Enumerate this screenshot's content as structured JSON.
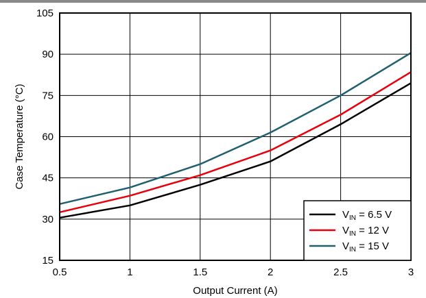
{
  "chart_data": {
    "type": "line",
    "title": "",
    "xlabel": "Output Current (A)",
    "ylabel": "Case Temperature (°C)",
    "xlim": [
      0.5,
      3
    ],
    "ylim": [
      15,
      105
    ],
    "xticks": [
      "0.5",
      "1",
      "1.5",
      "2",
      "2.5",
      "3"
    ],
    "yticks": [
      "15",
      "30",
      "45",
      "60",
      "75",
      "90",
      "105"
    ],
    "grid": true,
    "legend_position": "bottom-right",
    "series": [
      {
        "name_main": "V",
        "name_sub": "IN",
        "name_rest": " = 6.5 V",
        "color": "#000000",
        "x": [
          0.5,
          1.0,
          1.5,
          2.0,
          2.5,
          3.0
        ],
        "y": [
          30.5,
          35.0,
          42.5,
          51.0,
          64.5,
          79.5
        ]
      },
      {
        "name_main": "V",
        "name_sub": "IN",
        "name_rest": " = 12 V",
        "color": "#e8000b",
        "x": [
          0.5,
          1.0,
          1.5,
          2.0,
          2.5,
          3.0
        ],
        "y": [
          32.5,
          38.5,
          46.0,
          55.0,
          68.0,
          83.5
        ]
      },
      {
        "name_main": "V",
        "name_sub": "IN",
        "name_rest": " = 15 V",
        "color": "#1f5f6e",
        "x": [
          0.5,
          1.0,
          1.5,
          2.0,
          2.5,
          3.0
        ],
        "y": [
          35.5,
          41.5,
          50.0,
          61.5,
          75.0,
          90.5
        ]
      }
    ]
  }
}
